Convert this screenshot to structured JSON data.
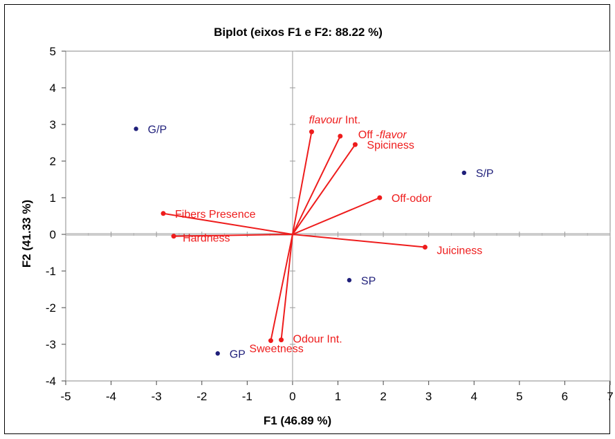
{
  "chart_data": {
    "type": "scatter",
    "title": "Biplot (eixos F1 e F2: 88.22 %)",
    "xlabel": "F1 (46.89 %)",
    "ylabel": "F2 (41.33 %)",
    "xlim": [
      -5,
      7
    ],
    "ylim": [
      -4,
      5
    ],
    "xticks": [
      "-5",
      "-4",
      "-3",
      "-2",
      "-1",
      "0",
      "1",
      "2",
      "3",
      "4",
      "5",
      "6",
      "7"
    ],
    "yticks": [
      "5",
      "4",
      "3",
      "2",
      "1",
      "0",
      "-1",
      "-2",
      "-3",
      "-4"
    ],
    "grid": false,
    "colors": {
      "observations": "#1f1f7a",
      "variables": "#ee1c1c"
    },
    "observations": [
      {
        "label": "G/P",
        "x": -3.45,
        "y": 2.88
      },
      {
        "label": "S/P",
        "x": 3.78,
        "y": 1.68
      },
      {
        "label": "SP",
        "x": 1.25,
        "y": -1.25
      },
      {
        "label": "GP",
        "x": -1.65,
        "y": -3.25
      }
    ],
    "variables": [
      {
        "label": "flavour Int.",
        "italic_part": "flavour",
        "rest": " Int.",
        "x": 0.42,
        "y": 2.8
      },
      {
        "label": "Off -flavor",
        "plain_part": "Off -",
        "italic_part": "flavor",
        "x": 1.05,
        "y": 2.68
      },
      {
        "label": "Spiciness",
        "x": 1.38,
        "y": 2.45
      },
      {
        "label": "Off-odor",
        "x": 1.92,
        "y": 1.0
      },
      {
        "label": "Fibers Presence",
        "x": -2.85,
        "y": 0.57
      },
      {
        "label": "Hardness",
        "x": -2.62,
        "y": -0.05
      },
      {
        "label": "Juiciness",
        "x": 2.92,
        "y": -0.35
      },
      {
        "label": "Odour Int.",
        "x": -0.25,
        "y": -2.88
      },
      {
        "label": "Sweetness",
        "x": -0.48,
        "y": -2.9
      }
    ]
  }
}
